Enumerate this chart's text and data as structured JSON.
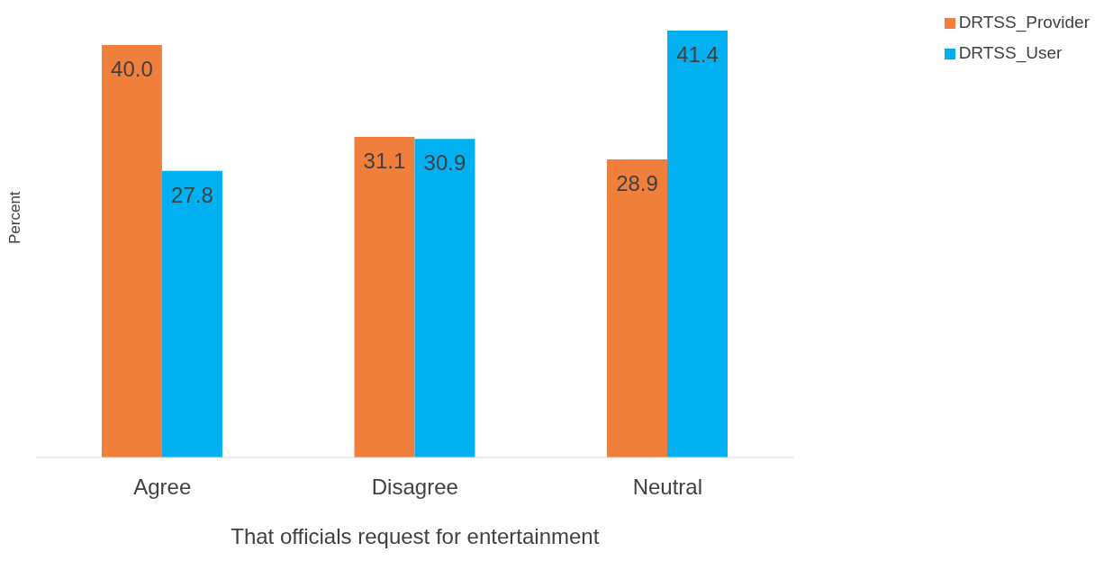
{
  "chart_data": {
    "type": "bar",
    "xlabel": "That officials request for entertainment",
    "ylabel": "Percent",
    "categories": [
      "Agree",
      "Disagree",
      "Neutral"
    ],
    "series": [
      {
        "name": "DRTSS_Provider",
        "color": "#f07f3c",
        "values": [
          40.0,
          31.1,
          28.9
        ],
        "value_labels": [
          "40.0",
          "31.1",
          "28.9"
        ]
      },
      {
        "name": "DRTSS_User",
        "color": "#00b0f0",
        "values": [
          27.8,
          30.9,
          41.4
        ],
        "value_labels": [
          "27.8",
          "30.9",
          "41.4"
        ]
      }
    ],
    "legend": "top right",
    "grid": false
  }
}
